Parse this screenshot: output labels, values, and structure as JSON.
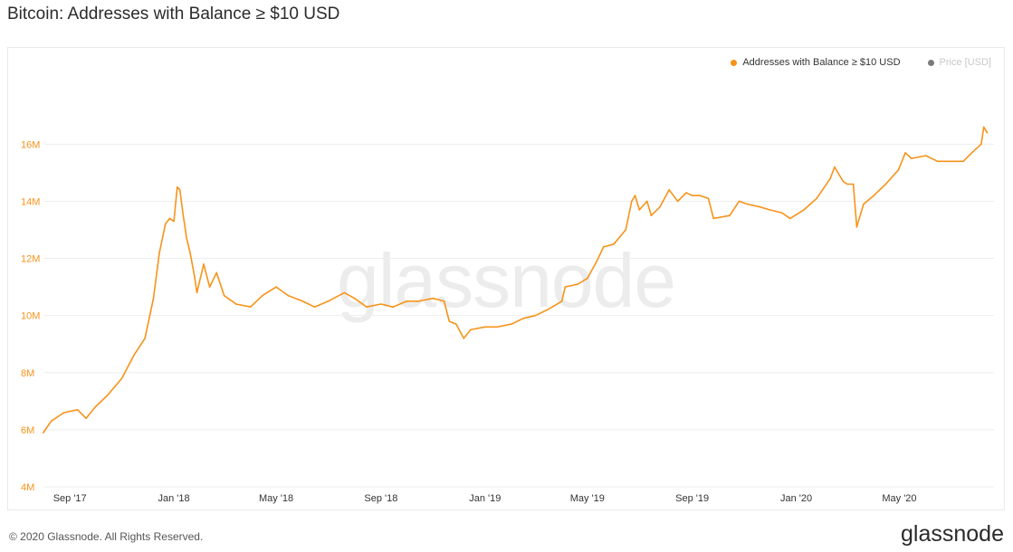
{
  "title": "Bitcoin: Addresses with Balance ≥ $10 USD",
  "legend": {
    "items": [
      {
        "label": "Addresses with Balance ≥ $10 USD",
        "color": "#f7931a"
      },
      {
        "label": "Price [USD]",
        "color": "#7a7a7a"
      }
    ]
  },
  "watermark": "glassnode",
  "footer": {
    "copyright": "© 2020 Glassnode. All Rights Reserved.",
    "brand": "glassnode"
  },
  "colors": {
    "line": "#f7931a",
    "tick_label": "#f7931a",
    "grid": "#eeeeee"
  },
  "chart_data": {
    "type": "line",
    "title": "Bitcoin: Addresses with Balance ≥ $10 USD",
    "xlabel": "",
    "ylabel": "",
    "ylim": [
      4,
      17.5
    ],
    "ytick_values": [
      4,
      6,
      8,
      10,
      12,
      14,
      16
    ],
    "ytick_labels": [
      "4M",
      "6M",
      "8M",
      "10M",
      "12M",
      "14M",
      "16M"
    ],
    "xlim": [
      "2017-08-01",
      "2020-08-20"
    ],
    "xtick_dates": [
      "2017-09-01",
      "2018-01-01",
      "2018-05-01",
      "2018-09-01",
      "2019-01-01",
      "2019-05-01",
      "2019-09-01",
      "2020-01-01",
      "2020-05-01"
    ],
    "xtick_labels": [
      "Sep '17",
      "Jan '18",
      "May '18",
      "Sep '18",
      "Jan '19",
      "May '19",
      "Sep '19",
      "Jan '20",
      "May '20"
    ],
    "grid": true,
    "legend_position": "top-right",
    "series": [
      {
        "name": "Addresses with Balance ≥ $10 USD",
        "unit": "M",
        "points": [
          [
            "2017-08-01",
            5.9
          ],
          [
            "2017-08-10",
            6.3
          ],
          [
            "2017-08-25",
            6.6
          ],
          [
            "2017-09-10",
            6.7
          ],
          [
            "2017-09-20",
            6.4
          ],
          [
            "2017-10-01",
            6.8
          ],
          [
            "2017-10-15",
            7.2
          ],
          [
            "2017-11-01",
            7.8
          ],
          [
            "2017-11-15",
            8.6
          ],
          [
            "2017-11-28",
            9.2
          ],
          [
            "2017-12-08",
            10.6
          ],
          [
            "2017-12-15",
            12.2
          ],
          [
            "2017-12-22",
            13.2
          ],
          [
            "2017-12-27",
            13.4
          ],
          [
            "2018-01-01",
            13.3
          ],
          [
            "2018-01-05",
            14.5
          ],
          [
            "2018-01-08",
            14.4
          ],
          [
            "2018-01-12",
            13.5
          ],
          [
            "2018-01-16",
            12.7
          ],
          [
            "2018-01-20",
            12.2
          ],
          [
            "2018-01-25",
            11.4
          ],
          [
            "2018-01-28",
            10.8
          ],
          [
            "2018-02-05",
            11.8
          ],
          [
            "2018-02-12",
            11.0
          ],
          [
            "2018-02-20",
            11.5
          ],
          [
            "2018-03-01",
            10.7
          ],
          [
            "2018-03-15",
            10.4
          ],
          [
            "2018-04-01",
            10.3
          ],
          [
            "2018-04-15",
            10.7
          ],
          [
            "2018-05-01",
            11.0
          ],
          [
            "2018-05-15",
            10.7
          ],
          [
            "2018-06-01",
            10.5
          ],
          [
            "2018-06-15",
            10.3
          ],
          [
            "2018-07-01",
            10.5
          ],
          [
            "2018-07-20",
            10.8
          ],
          [
            "2018-08-01",
            10.6
          ],
          [
            "2018-08-15",
            10.3
          ],
          [
            "2018-09-01",
            10.4
          ],
          [
            "2018-09-15",
            10.3
          ],
          [
            "2018-10-01",
            10.5
          ],
          [
            "2018-10-15",
            10.5
          ],
          [
            "2018-11-01",
            10.6
          ],
          [
            "2018-11-14",
            10.5
          ],
          [
            "2018-11-20",
            9.8
          ],
          [
            "2018-11-28",
            9.7
          ],
          [
            "2018-12-07",
            9.2
          ],
          [
            "2018-12-15",
            9.5
          ],
          [
            "2019-01-01",
            9.6
          ],
          [
            "2019-01-15",
            9.6
          ],
          [
            "2019-02-01",
            9.7
          ],
          [
            "2019-02-15",
            9.9
          ],
          [
            "2019-03-01",
            10.0
          ],
          [
            "2019-03-15",
            10.2
          ],
          [
            "2019-04-01",
            10.5
          ],
          [
            "2019-04-05",
            11.0
          ],
          [
            "2019-04-20",
            11.1
          ],
          [
            "2019-05-01",
            11.3
          ],
          [
            "2019-05-12",
            11.9
          ],
          [
            "2019-05-20",
            12.4
          ],
          [
            "2019-06-01",
            12.5
          ],
          [
            "2019-06-15",
            13.0
          ],
          [
            "2019-06-22",
            14.0
          ],
          [
            "2019-06-26",
            14.2
          ],
          [
            "2019-07-01",
            13.7
          ],
          [
            "2019-07-10",
            14.0
          ],
          [
            "2019-07-15",
            13.5
          ],
          [
            "2019-07-25",
            13.8
          ],
          [
            "2019-08-05",
            14.4
          ],
          [
            "2019-08-15",
            14.0
          ],
          [
            "2019-08-25",
            14.3
          ],
          [
            "2019-09-01",
            14.2
          ],
          [
            "2019-09-10",
            14.2
          ],
          [
            "2019-09-20",
            14.1
          ],
          [
            "2019-09-26",
            13.4
          ],
          [
            "2019-10-15",
            13.5
          ],
          [
            "2019-10-26",
            14.0
          ],
          [
            "2019-11-05",
            13.9
          ],
          [
            "2019-11-20",
            13.8
          ],
          [
            "2019-12-01",
            13.7
          ],
          [
            "2019-12-15",
            13.6
          ],
          [
            "2019-12-25",
            13.4
          ],
          [
            "2020-01-10",
            13.7
          ],
          [
            "2020-01-25",
            14.1
          ],
          [
            "2020-02-10",
            14.8
          ],
          [
            "2020-02-15",
            15.2
          ],
          [
            "2020-02-25",
            14.7
          ],
          [
            "2020-03-01",
            14.6
          ],
          [
            "2020-03-08",
            14.6
          ],
          [
            "2020-03-12",
            13.1
          ],
          [
            "2020-03-20",
            13.9
          ],
          [
            "2020-04-01",
            14.2
          ],
          [
            "2020-04-15",
            14.6
          ],
          [
            "2020-04-30",
            15.1
          ],
          [
            "2020-05-08",
            15.7
          ],
          [
            "2020-05-15",
            15.5
          ],
          [
            "2020-06-01",
            15.6
          ],
          [
            "2020-06-15",
            15.4
          ],
          [
            "2020-07-01",
            15.4
          ],
          [
            "2020-07-15",
            15.4
          ],
          [
            "2020-07-25",
            15.7
          ],
          [
            "2020-08-05",
            16.0
          ],
          [
            "2020-08-08",
            16.6
          ],
          [
            "2020-08-12",
            16.4
          ]
        ]
      }
    ]
  }
}
